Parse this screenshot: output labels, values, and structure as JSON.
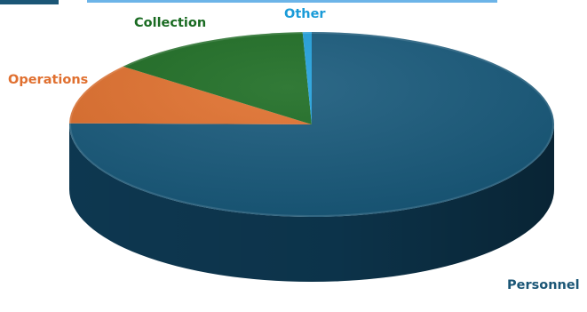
{
  "chart_data": {
    "type": "pie",
    "style": "3d",
    "categories": [
      "Personnel",
      "Operations",
      "Collection",
      "Other"
    ],
    "values": [
      75.2,
      10.6,
      13.6,
      0.6
    ],
    "labels": [
      {
        "text": "Personnel",
        "color": "#1b5676"
      },
      {
        "text": "Operations",
        "color": "#e07030"
      },
      {
        "text": "Collection",
        "color": "#1a6b22"
      },
      {
        "text": "Other",
        "color": "#1a9bd8"
      }
    ],
    "colors": {
      "Personnel": "#16587a",
      "Operations": "#e06f2c",
      "Collection": "#1b6b21",
      "Other": "#1f9fdc"
    },
    "side_colors": {
      "Personnel": "#0e3a54",
      "Operations": "#9e4a18",
      "Collection": "#0f4414",
      "Other": "#12698f"
    },
    "title": "",
    "legend": "none"
  }
}
